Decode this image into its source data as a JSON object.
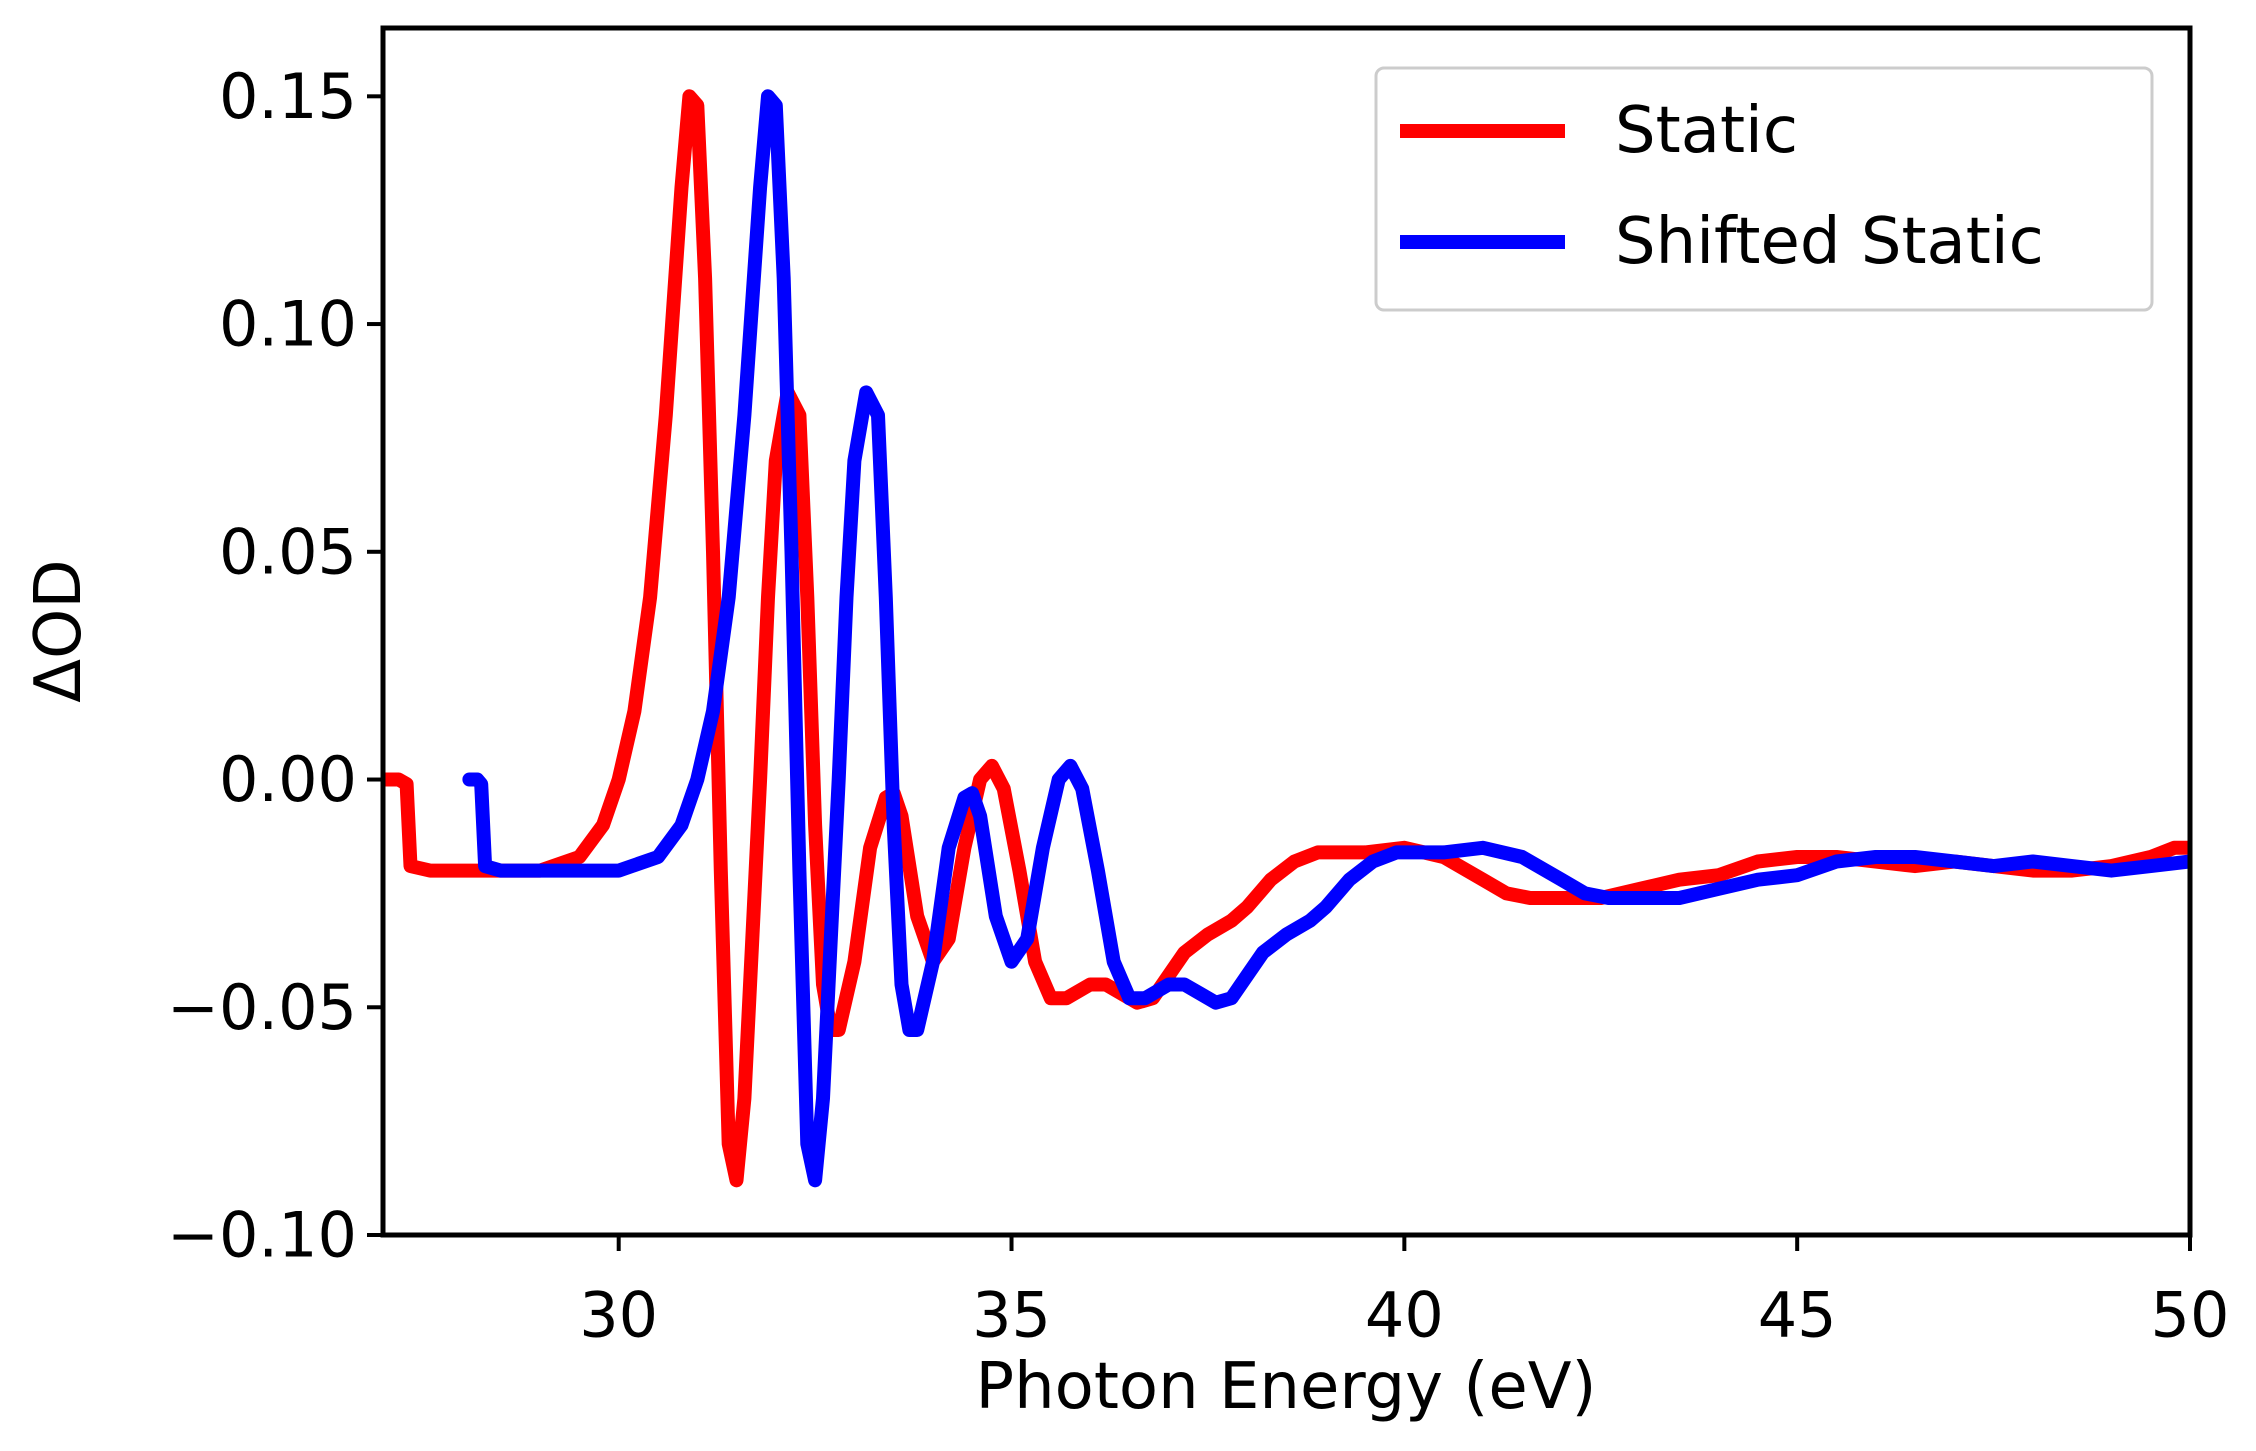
{
  "chart_data": {
    "type": "line",
    "title": "",
    "xlabel": "Photon Energy (eV)",
    "ylabel": "ΔOD",
    "xlim": [
      27,
      50
    ],
    "ylim": [
      -0.1,
      0.165
    ],
    "xticks": [
      30,
      35,
      40,
      45,
      50
    ],
    "xtick_labels": [
      "30",
      "35",
      "40",
      "45",
      "50"
    ],
    "yticks": [
      -0.1,
      -0.05,
      0.0,
      0.05,
      0.1,
      0.15
    ],
    "ytick_labels": [
      "−0.10",
      "−0.05",
      "0.00",
      "0.05",
      "0.10",
      "0.15"
    ],
    "grid": false,
    "legend_position": "top-right",
    "series": [
      {
        "name": "Static",
        "color": "#ff0000",
        "points": [
          [
            27.0,
            0.0
          ],
          [
            27.2,
            0.0
          ],
          [
            27.3,
            -0.001
          ],
          [
            27.35,
            -0.019
          ],
          [
            27.6,
            -0.02
          ],
          [
            28.0,
            -0.02
          ],
          [
            28.5,
            -0.02
          ],
          [
            29.0,
            -0.02
          ],
          [
            29.5,
            -0.017
          ],
          [
            29.8,
            -0.01
          ],
          [
            30.0,
            0.0
          ],
          [
            30.2,
            0.015
          ],
          [
            30.4,
            0.04
          ],
          [
            30.6,
            0.08
          ],
          [
            30.8,
            0.13
          ],
          [
            30.9,
            0.15
          ],
          [
            31.0,
            0.148
          ],
          [
            31.1,
            0.11
          ],
          [
            31.2,
            0.05
          ],
          [
            31.3,
            -0.02
          ],
          [
            31.4,
            -0.08
          ],
          [
            31.5,
            -0.088
          ],
          [
            31.6,
            -0.07
          ],
          [
            31.7,
            -0.035
          ],
          [
            31.8,
            0.0
          ],
          [
            31.9,
            0.04
          ],
          [
            32.0,
            0.07
          ],
          [
            32.15,
            0.085
          ],
          [
            32.3,
            0.08
          ],
          [
            32.4,
            0.04
          ],
          [
            32.5,
            -0.01
          ],
          [
            32.6,
            -0.045
          ],
          [
            32.7,
            -0.055
          ],
          [
            32.8,
            -0.055
          ],
          [
            33.0,
            -0.04
          ],
          [
            33.2,
            -0.015
          ],
          [
            33.4,
            -0.004
          ],
          [
            33.5,
            -0.003
          ],
          [
            33.6,
            -0.008
          ],
          [
            33.8,
            -0.03
          ],
          [
            34.0,
            -0.04
          ],
          [
            34.2,
            -0.035
          ],
          [
            34.4,
            -0.015
          ],
          [
            34.6,
            0.0
          ],
          [
            34.75,
            0.003
          ],
          [
            34.9,
            -0.002
          ],
          [
            35.1,
            -0.02
          ],
          [
            35.3,
            -0.04
          ],
          [
            35.5,
            -0.048
          ],
          [
            35.7,
            -0.048
          ],
          [
            36.0,
            -0.045
          ],
          [
            36.2,
            -0.045
          ],
          [
            36.4,
            -0.047
          ],
          [
            36.6,
            -0.049
          ],
          [
            36.8,
            -0.048
          ],
          [
            37.0,
            -0.043
          ],
          [
            37.2,
            -0.038
          ],
          [
            37.5,
            -0.034
          ],
          [
            37.8,
            -0.031
          ],
          [
            38.0,
            -0.028
          ],
          [
            38.3,
            -0.022
          ],
          [
            38.6,
            -0.018
          ],
          [
            38.9,
            -0.016
          ],
          [
            39.5,
            -0.016
          ],
          [
            40.0,
            -0.015
          ],
          [
            40.5,
            -0.017
          ],
          [
            41.0,
            -0.022
          ],
          [
            41.3,
            -0.025
          ],
          [
            41.6,
            -0.026
          ],
          [
            42.0,
            -0.026
          ],
          [
            42.5,
            -0.026
          ],
          [
            43.0,
            -0.024
          ],
          [
            43.5,
            -0.022
          ],
          [
            44.0,
            -0.021
          ],
          [
            44.5,
            -0.018
          ],
          [
            45.0,
            -0.017
          ],
          [
            45.5,
            -0.017
          ],
          [
            46.0,
            -0.018
          ],
          [
            46.5,
            -0.019
          ],
          [
            47.0,
            -0.018
          ],
          [
            47.5,
            -0.019
          ],
          [
            48.0,
            -0.02
          ],
          [
            48.5,
            -0.02
          ],
          [
            49.0,
            -0.019
          ],
          [
            49.5,
            -0.017
          ],
          [
            49.8,
            -0.015
          ],
          [
            50.0,
            -0.015
          ]
        ]
      },
      {
        "name": "Shifted Static",
        "color": "#0000ff",
        "points": [
          [
            28.1,
            0.0
          ],
          [
            28.2,
            0.0
          ],
          [
            28.25,
            -0.001
          ],
          [
            28.3,
            -0.019
          ],
          [
            28.5,
            -0.02
          ],
          [
            29.0,
            -0.02
          ],
          [
            29.5,
            -0.02
          ],
          [
            30.0,
            -0.02
          ],
          [
            30.5,
            -0.017
          ],
          [
            30.8,
            -0.01
          ],
          [
            31.0,
            0.0
          ],
          [
            31.2,
            0.015
          ],
          [
            31.4,
            0.04
          ],
          [
            31.6,
            0.08
          ],
          [
            31.8,
            0.13
          ],
          [
            31.9,
            0.15
          ],
          [
            32.0,
            0.148
          ],
          [
            32.1,
            0.11
          ],
          [
            32.2,
            0.05
          ],
          [
            32.3,
            -0.02
          ],
          [
            32.4,
            -0.08
          ],
          [
            32.5,
            -0.088
          ],
          [
            32.6,
            -0.07
          ],
          [
            32.7,
            -0.035
          ],
          [
            32.8,
            0.0
          ],
          [
            32.9,
            0.04
          ],
          [
            33.0,
            0.07
          ],
          [
            33.15,
            0.085
          ],
          [
            33.3,
            0.08
          ],
          [
            33.4,
            0.04
          ],
          [
            33.5,
            -0.01
          ],
          [
            33.6,
            -0.045
          ],
          [
            33.7,
            -0.055
          ],
          [
            33.8,
            -0.055
          ],
          [
            34.0,
            -0.04
          ],
          [
            34.2,
            -0.015
          ],
          [
            34.4,
            -0.004
          ],
          [
            34.5,
            -0.003
          ],
          [
            34.6,
            -0.008
          ],
          [
            34.8,
            -0.03
          ],
          [
            35.0,
            -0.04
          ],
          [
            35.2,
            -0.035
          ],
          [
            35.4,
            -0.015
          ],
          [
            35.6,
            0.0
          ],
          [
            35.75,
            0.003
          ],
          [
            35.9,
            -0.002
          ],
          [
            36.1,
            -0.02
          ],
          [
            36.3,
            -0.04
          ],
          [
            36.5,
            -0.048
          ],
          [
            36.7,
            -0.048
          ],
          [
            37.0,
            -0.045
          ],
          [
            37.2,
            -0.045
          ],
          [
            37.4,
            -0.047
          ],
          [
            37.6,
            -0.049
          ],
          [
            37.8,
            -0.048
          ],
          [
            38.0,
            -0.043
          ],
          [
            38.2,
            -0.038
          ],
          [
            38.5,
            -0.034
          ],
          [
            38.8,
            -0.031
          ],
          [
            39.0,
            -0.028
          ],
          [
            39.3,
            -0.022
          ],
          [
            39.6,
            -0.018
          ],
          [
            39.9,
            -0.016
          ],
          [
            40.5,
            -0.016
          ],
          [
            41.0,
            -0.015
          ],
          [
            41.5,
            -0.017
          ],
          [
            42.0,
            -0.022
          ],
          [
            42.3,
            -0.025
          ],
          [
            42.6,
            -0.026
          ],
          [
            43.0,
            -0.026
          ],
          [
            43.5,
            -0.026
          ],
          [
            44.0,
            -0.024
          ],
          [
            44.5,
            -0.022
          ],
          [
            45.0,
            -0.021
          ],
          [
            45.5,
            -0.018
          ],
          [
            46.0,
            -0.017
          ],
          [
            46.5,
            -0.017
          ],
          [
            47.0,
            -0.018
          ],
          [
            47.5,
            -0.019
          ],
          [
            48.0,
            -0.018
          ],
          [
            48.5,
            -0.019
          ],
          [
            49.0,
            -0.02
          ],
          [
            49.5,
            -0.019
          ],
          [
            50.0,
            -0.018
          ]
        ]
      }
    ]
  }
}
